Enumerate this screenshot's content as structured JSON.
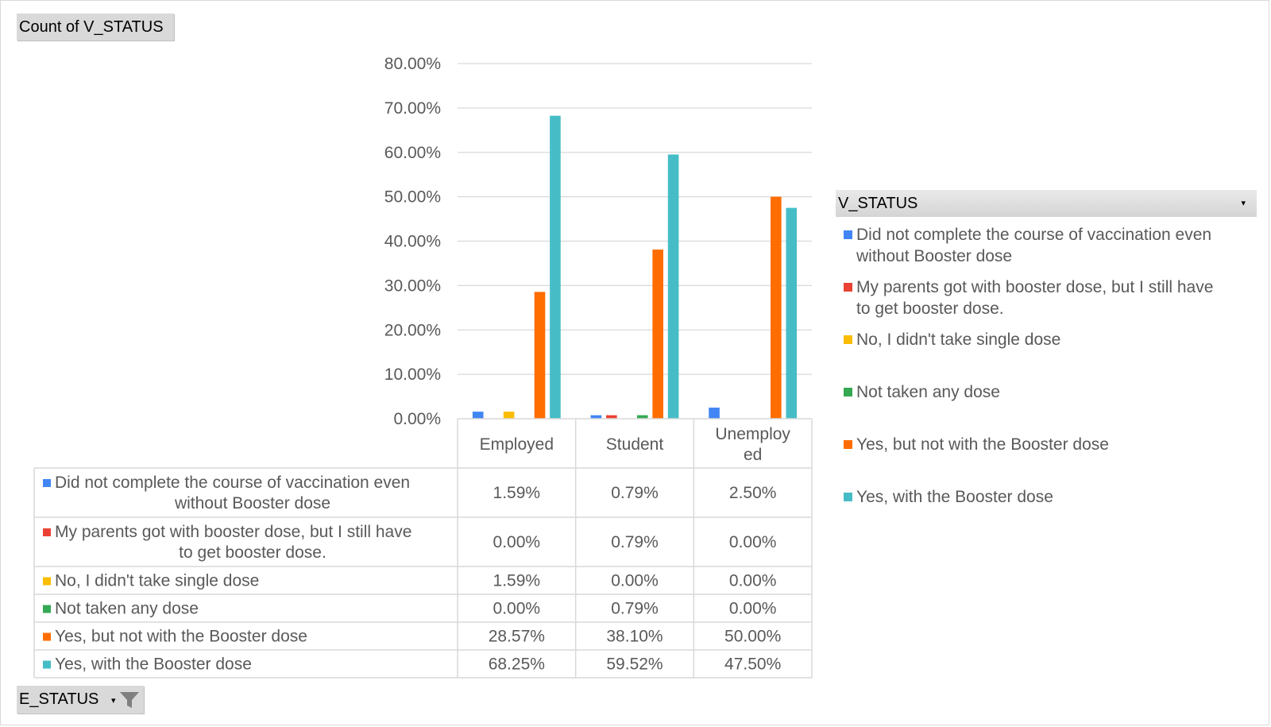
{
  "pivot": {
    "value_field_label": "Count of V_STATUS",
    "filter_field_label": "E_STATUS",
    "legend_field_label": "V_STATUS"
  },
  "icons": {
    "filter": "filter-funnel-icon",
    "dropdown": "dropdown-arrow-icon"
  },
  "chart_data": {
    "type": "bar",
    "categories": [
      "Employed",
      "Student",
      "Unemployed"
    ],
    "category_display": [
      [
        "Employed"
      ],
      [
        "Student"
      ],
      [
        "Unemploy",
        "ed"
      ]
    ],
    "ylim": [
      0,
      80
    ],
    "yticks": [
      "0.00%",
      "10.00%",
      "20.00%",
      "30.00%",
      "40.00%",
      "50.00%",
      "60.00%",
      "70.00%",
      "80.00%"
    ],
    "grid": true,
    "legend": "right",
    "data_table": true,
    "series": [
      {
        "name": "Did not complete the course of vaccination even without Booster dose",
        "table_label": [
          "Did not complete the course of vaccination even",
          "without Booster dose"
        ],
        "legend_label": [
          "Did not complete the course of vaccination even",
          "without Booster dose"
        ],
        "color": "#4285f4",
        "values": [
          1.59,
          0.79,
          2.5
        ],
        "labels": [
          "1.59%",
          "0.79%",
          "2.50%"
        ]
      },
      {
        "name": "My parents got with booster dose, but I still have to get booster dose.",
        "table_label": [
          "My parents got with booster dose, but I still have",
          "to get booster dose."
        ],
        "legend_label": [
          "My parents got with booster dose, but I still have",
          "to get booster dose."
        ],
        "color": "#ea4335",
        "values": [
          0.0,
          0.79,
          0.0
        ],
        "labels": [
          "0.00%",
          "0.79%",
          "0.00%"
        ]
      },
      {
        "name": "No, I didn't take single dose",
        "table_label": [
          "No, I didn't take single dose"
        ],
        "legend_label": [
          "No, I didn't take single dose"
        ],
        "color": "#fbbc04",
        "values": [
          1.59,
          0.0,
          0.0
        ],
        "labels": [
          "1.59%",
          "0.00%",
          "0.00%"
        ]
      },
      {
        "name": "Not taken any dose",
        "table_label": [
          "Not taken any dose"
        ],
        "legend_label": [
          "Not taken any dose"
        ],
        "color": "#34a853",
        "values": [
          0.0,
          0.79,
          0.0
        ],
        "labels": [
          "0.00%",
          "0.79%",
          "0.00%"
        ]
      },
      {
        "name": "Yes, but not with the Booster dose",
        "table_label": [
          "Yes, but not with the Booster dose"
        ],
        "legend_label": [
          "Yes, but not with the Booster dose"
        ],
        "color": "#ff6d01",
        "values": [
          28.57,
          38.1,
          50.0
        ],
        "labels": [
          "28.57%",
          "38.10%",
          "50.00%"
        ]
      },
      {
        "name": "Yes, with the Booster dose",
        "table_label": [
          "Yes, with the Booster dose"
        ],
        "legend_label": [
          "Yes, with the Booster dose"
        ],
        "color": "#46bdc6",
        "values": [
          68.25,
          59.52,
          47.5
        ],
        "labels": [
          "68.25%",
          "59.52%",
          "47.50%"
        ]
      }
    ]
  }
}
